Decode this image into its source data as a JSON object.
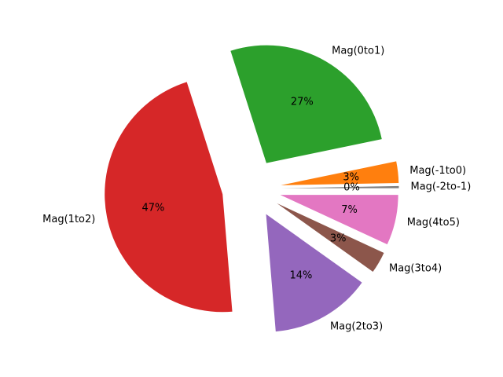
{
  "chart_data": {
    "type": "pie",
    "title": "",
    "categories": [
      "Mag(-2to-1)",
      "Mag(-1to0)",
      "Mag(0to1)",
      "Mag(1to2)",
      "Mag(2to3)",
      "Mag(3to4)",
      "Mag(4to5)"
    ],
    "values": [
      0.3,
      3,
      27,
      47,
      14,
      3,
      7
    ],
    "percent_labels": [
      "0%",
      "3%",
      "27%",
      "47%",
      "14%",
      "3%",
      "7%"
    ],
    "colors": [
      "#7f7f7f",
      "#ff7f0e",
      "#2ca02c",
      "#d62728",
      "#9467bd",
      "#8c564b",
      "#e377c2"
    ],
    "start_angle_deg": 0,
    "direction": "counterclockwise",
    "exploded": true,
    "legend": "none"
  }
}
